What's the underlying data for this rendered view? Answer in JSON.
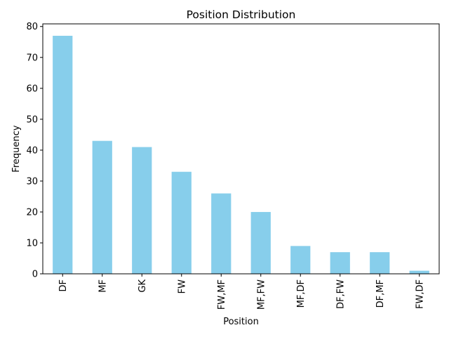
{
  "chart_data": {
    "type": "bar",
    "title": "Position Distribution",
    "xlabel": "Position",
    "ylabel": "Frequency",
    "categories": [
      "DF",
      "MF",
      "GK",
      "FW",
      "FW,MF",
      "MF,FW",
      "MF,DF",
      "DF,FW",
      "DF,MF",
      "FW,DF"
    ],
    "values": [
      77,
      43,
      41,
      33,
      26,
      20,
      9,
      7,
      7,
      1
    ],
    "ylim": [
      0,
      80.85
    ],
    "yticks": [
      0,
      10,
      20,
      30,
      40,
      50,
      60,
      70,
      80
    ],
    "bar_color": "#87ceeb",
    "grid": false,
    "legend": "none"
  }
}
